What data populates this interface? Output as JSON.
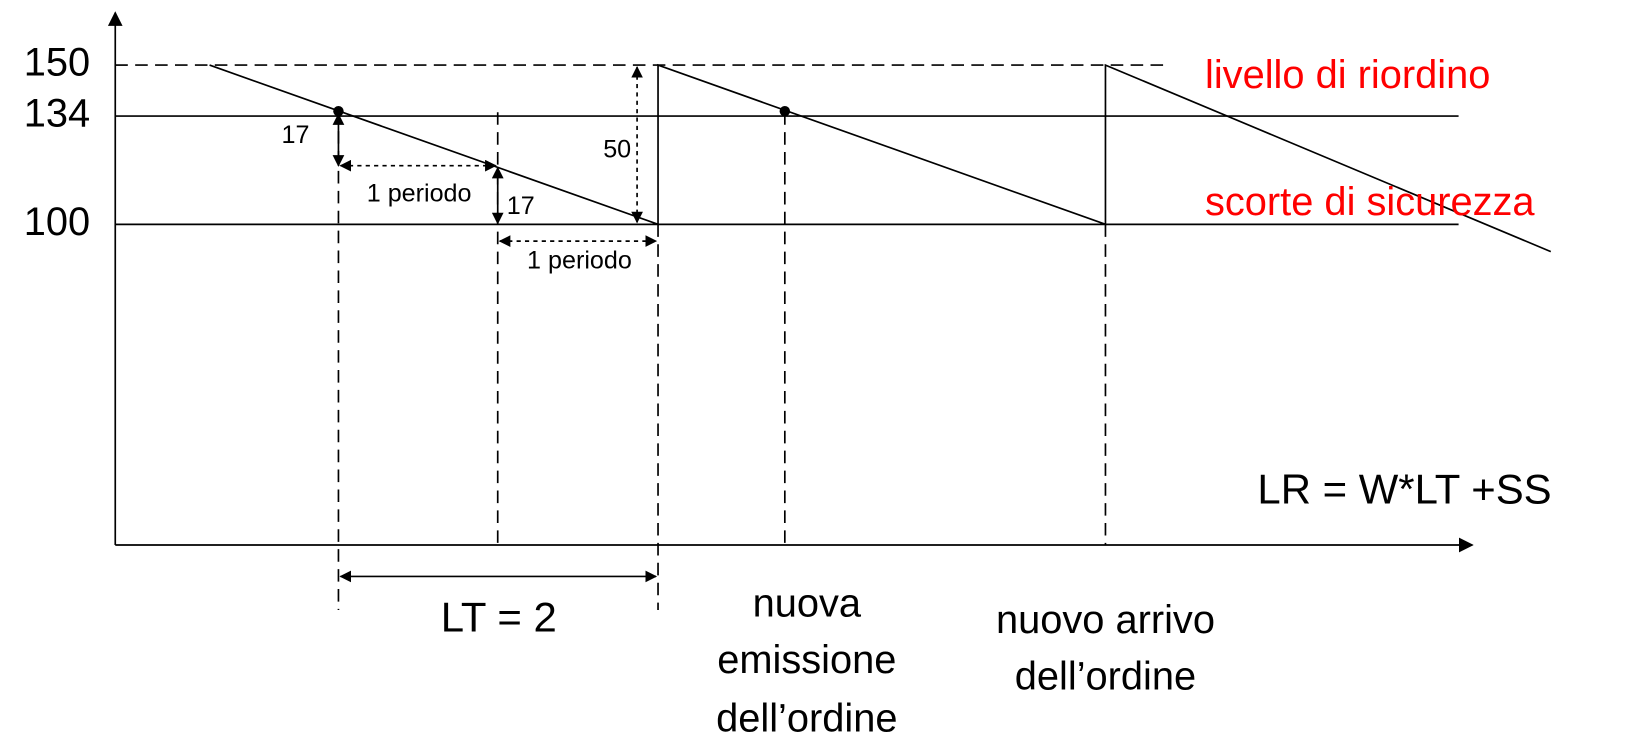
{
  "levels": [
    150,
    134,
    100
  ],
  "level_names": {
    "reorder": "livello di riordino",
    "safety": "scorte di sicurezza"
  },
  "annotations": {
    "drop_first": "17",
    "drop_second": "17",
    "quantity": "50",
    "period_first": "1 periodo",
    "period_second": "1 periodo",
    "lead_time": "LT = 2",
    "formula": "LR = W*LT +SS"
  },
  "captions": {
    "new_issue": [
      "nuova",
      "emissione",
      "dell’ordine"
    ],
    "new_arrival": [
      "nuovo arrivo",
      "dell’ordine"
    ]
  }
}
